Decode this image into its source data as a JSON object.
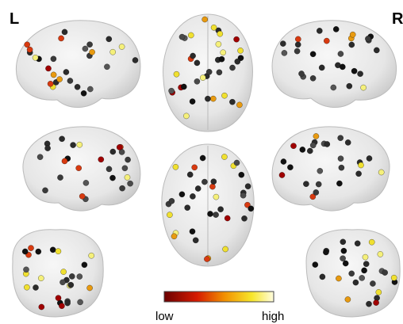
{
  "hemisphere_labels": {
    "left": "L",
    "right": "R"
  },
  "colorbar": {
    "low": "low",
    "high": "high"
  }
}
